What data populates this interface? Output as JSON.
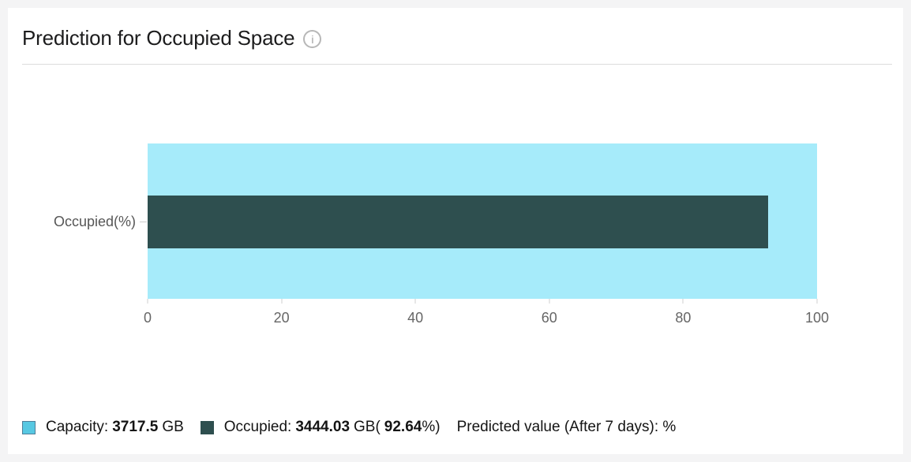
{
  "card": {
    "title": "Prediction for Occupied Space",
    "info_icon_glyph": "i"
  },
  "chart_data": {
    "type": "bar",
    "orientation": "horizontal",
    "title": "Prediction for Occupied Space",
    "categories": [
      "Occupied(%)"
    ],
    "series": [
      {
        "name": "Capacity",
        "values": [
          100
        ],
        "color": "#a6ebfa"
      },
      {
        "name": "Occupied",
        "values": [
          92.64
        ],
        "color": "#2e4f4f"
      }
    ],
    "xlim": [
      0,
      100
    ],
    "x_ticks": [
      0,
      20,
      40,
      60,
      80,
      100
    ],
    "xlabel": "",
    "ylabel": "",
    "grid": false,
    "legend_position": "bottom"
  },
  "legend": {
    "capacity": {
      "label": "Capacity:",
      "value": "3717.5",
      "suffix": "GB",
      "swatch_fill": "#57c8e2",
      "swatch_border": "#4f7e98"
    },
    "occupied": {
      "label": "Occupied:",
      "value": "3444.03",
      "suffix": "GB(",
      "percent": "92.64",
      "suffix2": "%)",
      "swatch_fill": "#2e4f4f",
      "swatch_border": "#2e4f4f"
    },
    "predicted": {
      "label": "Predicted value (After 7 days): %"
    }
  },
  "colors": {
    "capacity_bar": "#a6ebfa",
    "occupied_bar": "#2e4f4f",
    "axis_text": "#666666",
    "divider": "#dcdcdc"
  }
}
